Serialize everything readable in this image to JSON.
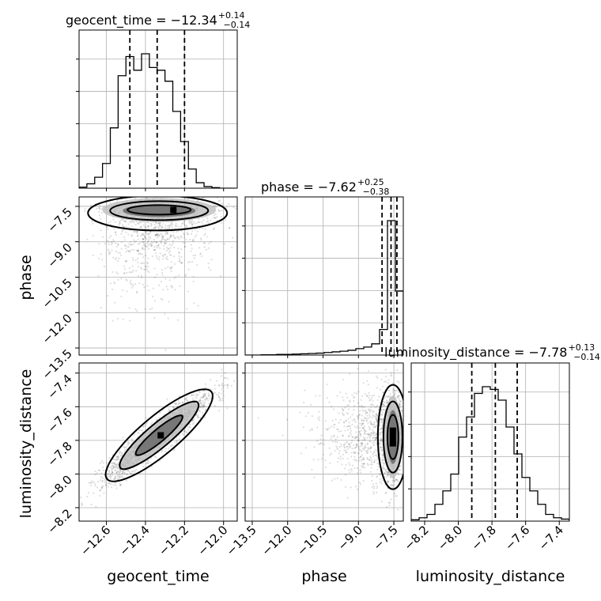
{
  "chart_data": {
    "type": "corner",
    "parameters": [
      "geocent_time",
      "phase",
      "luminosity_distance"
    ],
    "axis_labels": {
      "geocent_time": "geocent_time",
      "phase": "phase",
      "luminosity_distance": "luminosity_distance"
    },
    "titles": [
      {
        "param": "geocent_time",
        "label": "geocent_time = −12.34",
        "median": -12.34,
        "plus": "+0.14",
        "minus": "−0.14"
      },
      {
        "param": "phase",
        "label": "phase = −7.62",
        "median": -7.62,
        "plus": "+0.25",
        "minus": "−0.38"
      },
      {
        "param": "luminosity_distance",
        "label": "luminosity_distance = −7.78",
        "median": -7.78,
        "plus": "+0.13",
        "minus": "−0.14"
      }
    ],
    "ranges": {
      "geocent_time": [
        -12.74,
        -11.93
      ],
      "phase": [
        -13.8,
        -7.1
      ],
      "luminosity_distance": [
        -8.28,
        -7.34
      ]
    },
    "ticks": {
      "geocent_time": [
        {
          "v": -12.6,
          "label": "−12.6"
        },
        {
          "v": -12.4,
          "label": "−12.4"
        },
        {
          "v": -12.2,
          "label": "−12.2"
        },
        {
          "v": -12.0,
          "label": "−12.0"
        }
      ],
      "phase": [
        {
          "v": -13.5,
          "label": "−13.5"
        },
        {
          "v": -12.0,
          "label": "−12.0"
        },
        {
          "v": -10.5,
          "label": "−10.5"
        },
        {
          "v": -9.0,
          "label": "−9.0"
        },
        {
          "v": -7.5,
          "label": "−7.5"
        }
      ],
      "luminosity_distance": [
        {
          "v": -8.2,
          "label": "−8.2"
        },
        {
          "v": -8.0,
          "label": "−8.0"
        },
        {
          "v": -7.8,
          "label": "−7.8"
        },
        {
          "v": -7.6,
          "label": "−7.6"
        },
        {
          "v": -7.4,
          "label": "−7.4"
        }
      ]
    },
    "quantiles": {
      "geocent_time": [
        -12.48,
        -12.34,
        -12.2
      ],
      "phase": [
        -8.0,
        -7.62,
        -7.37
      ],
      "luminosity_distance": [
        -7.92,
        -7.78,
        -7.65
      ]
    },
    "histograms": {
      "geocent_time": {
        "edges_start": -12.74,
        "bin_width": 0.04,
        "counts": [
          2,
          8,
          20,
          45,
          110,
          205,
          240,
          215,
          245,
          220,
          215,
          195,
          140,
          85,
          35,
          10,
          3,
          1,
          0,
          0
        ]
      },
      "phase": {
        "edges_start": -13.8,
        "bin_width": 0.335,
        "counts": [
          0,
          0,
          1,
          1,
          2,
          2,
          3,
          4,
          5,
          6,
          8,
          10,
          12,
          15,
          20,
          25,
          35,
          80,
          420,
          200
        ]
      },
      "luminosity_distance": {
        "edges_start": -8.28,
        "bin_width": 0.047,
        "counts": [
          2,
          5,
          10,
          25,
          45,
          70,
          125,
          155,
          190,
          200,
          196,
          180,
          140,
          100,
          65,
          45,
          25,
          10,
          5,
          3
        ]
      }
    },
    "panels": [
      {
        "row": 1,
        "col": 0,
        "x": "geocent_time",
        "y": "phase"
      },
      {
        "row": 2,
        "col": 0,
        "x": "geocent_time",
        "y": "luminosity_distance"
      },
      {
        "row": 2,
        "col": 1,
        "x": "phase",
        "y": "luminosity_distance"
      }
    ]
  }
}
